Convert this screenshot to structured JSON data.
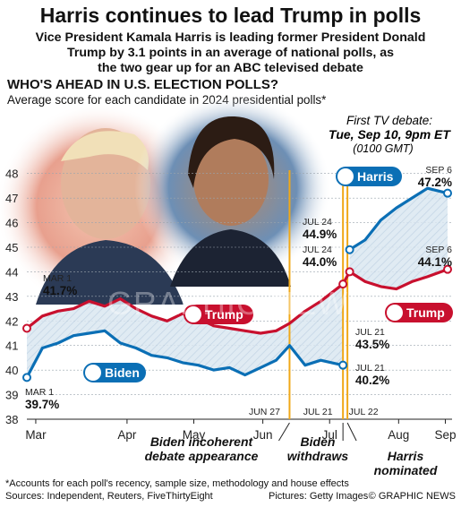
{
  "header": {
    "title": "Harris continues to lead Trump in polls",
    "subtitle_lines": [
      "Vice President Kamala Harris is leading former President Donald",
      "Trump by 3.1 points in an average of national polls, as",
      "the two gear up for an ABC televised debate"
    ],
    "section_title": "WHO'S AHEAD IN U.S. ELECTION POLLS?",
    "section_subtitle": "Average score for each candidate in 2024 presidential polls*"
  },
  "debate_note": {
    "line1": "First TV debate:",
    "line2": "Tue, Sep 10, 9pm ET",
    "line3": "(0100 GMT)"
  },
  "chart_data": {
    "type": "line",
    "x_ticks": [
      "Mar",
      "Apr",
      "May",
      "Jun",
      "Jul",
      "Aug",
      "Sep"
    ],
    "y_ticks": [
      38,
      39,
      40,
      41,
      42,
      43,
      44,
      45,
      46,
      47,
      48
    ],
    "ylim": [
      38,
      48.5
    ],
    "series": [
      {
        "name": "Trump",
        "color": "#c8102e",
        "points": [
          [
            "Mar 1",
            41.7
          ],
          [
            "Mar 8",
            42.2
          ],
          [
            "Mar 15",
            42.4
          ],
          [
            "Mar 22",
            42.5
          ],
          [
            "Mar 29",
            42.8
          ],
          [
            "Apr 5",
            42.6
          ],
          [
            "Apr 12",
            42.9
          ],
          [
            "Apr 19",
            42.5
          ],
          [
            "Apr 26",
            42.2
          ],
          [
            "May 3",
            42.0
          ],
          [
            "May 10",
            42.3
          ],
          [
            "May 17",
            42.1
          ],
          [
            "May 24",
            41.8
          ],
          [
            "May 31",
            41.7
          ],
          [
            "Jun 7",
            41.6
          ],
          [
            "Jun 14",
            41.5
          ],
          [
            "Jun 21",
            41.6
          ],
          [
            "Jun 27",
            41.9
          ],
          [
            "Jul 4",
            42.4
          ],
          [
            "Jul 11",
            42.8
          ],
          [
            "Jul 21",
            43.5
          ],
          [
            "Jul 24",
            44.0
          ],
          [
            "Jul 31",
            43.6
          ],
          [
            "Aug 7",
            43.4
          ],
          [
            "Aug 14",
            43.3
          ],
          [
            "Aug 21",
            43.6
          ],
          [
            "Aug 28",
            43.8
          ],
          [
            "Sep 6",
            44.1
          ]
        ],
        "label_start": {
          "date": "MAR 1",
          "value": "41.7%"
        },
        "label_jul21": {
          "date": "JUL 21",
          "value": "43.5%"
        },
        "label_jul24": {
          "date": "JUL 24",
          "value": "44.0%"
        },
        "label_end": {
          "date": "SEP 6",
          "value": "44.1%"
        }
      },
      {
        "name": "Biden",
        "color": "#0b6fb5",
        "points": [
          [
            "Mar 1",
            39.7
          ],
          [
            "Mar 8",
            40.9
          ],
          [
            "Mar 15",
            41.1
          ],
          [
            "Mar 22",
            41.4
          ],
          [
            "Mar 29",
            41.5
          ],
          [
            "Apr 5",
            41.6
          ],
          [
            "Apr 12",
            41.1
          ],
          [
            "Apr 19",
            40.9
          ],
          [
            "Apr 26",
            40.6
          ],
          [
            "May 3",
            40.5
          ],
          [
            "May 10",
            40.3
          ],
          [
            "May 17",
            40.2
          ],
          [
            "May 24",
            40.0
          ],
          [
            "May 31",
            40.1
          ],
          [
            "Jun 7",
            39.8
          ],
          [
            "Jun 14",
            40.1
          ],
          [
            "Jun 21",
            40.4
          ],
          [
            "Jun 27",
            41.0
          ],
          [
            "Jul 4",
            40.2
          ],
          [
            "Jul 11",
            40.4
          ],
          [
            "Jul 21",
            40.2
          ]
        ],
        "label_start": {
          "date": "MAR 1",
          "value": "39.7%"
        },
        "label_end": {
          "date": "JUL 21",
          "value": "40.2%"
        }
      },
      {
        "name": "Harris",
        "color": "#0b6fb5",
        "points": [
          [
            "Jul 24",
            44.9
          ],
          [
            "Jul 31",
            45.3
          ],
          [
            "Aug 7",
            46.1
          ],
          [
            "Aug 14",
            46.6
          ],
          [
            "Aug 21",
            47.0
          ],
          [
            "Aug 28",
            47.4
          ],
          [
            "Sep 6",
            47.2
          ]
        ],
        "label_start": {
          "date": "JUL 24",
          "value": "44.9%"
        },
        "label_end": {
          "date": "SEP 6",
          "value": "47.2%"
        }
      }
    ],
    "event_lines": [
      {
        "date": "JUN 27",
        "caption": [
          "Biden incoherent",
          "debate appearance"
        ]
      },
      {
        "date": "JUL 21",
        "caption": [
          "Biden",
          "withdraws"
        ]
      },
      {
        "date": "JUL 22",
        "caption": [
          "Harris",
          "nominated"
        ]
      }
    ]
  },
  "watermark": "GRAPHIC NEWS",
  "footer": {
    "footnote": "*Accounts for each poll's recency, sample size, methodology and house effects",
    "sources": "Sources: Independent, Reuters, FiveThirtyEight",
    "pictures": "Pictures: Getty Images",
    "credit": "© GRAPHIC NEWS"
  },
  "colors": {
    "trump": "#c8102e",
    "democrat": "#0b6fb5",
    "event_line": "#f0a818",
    "shade": "#c9dbea"
  }
}
